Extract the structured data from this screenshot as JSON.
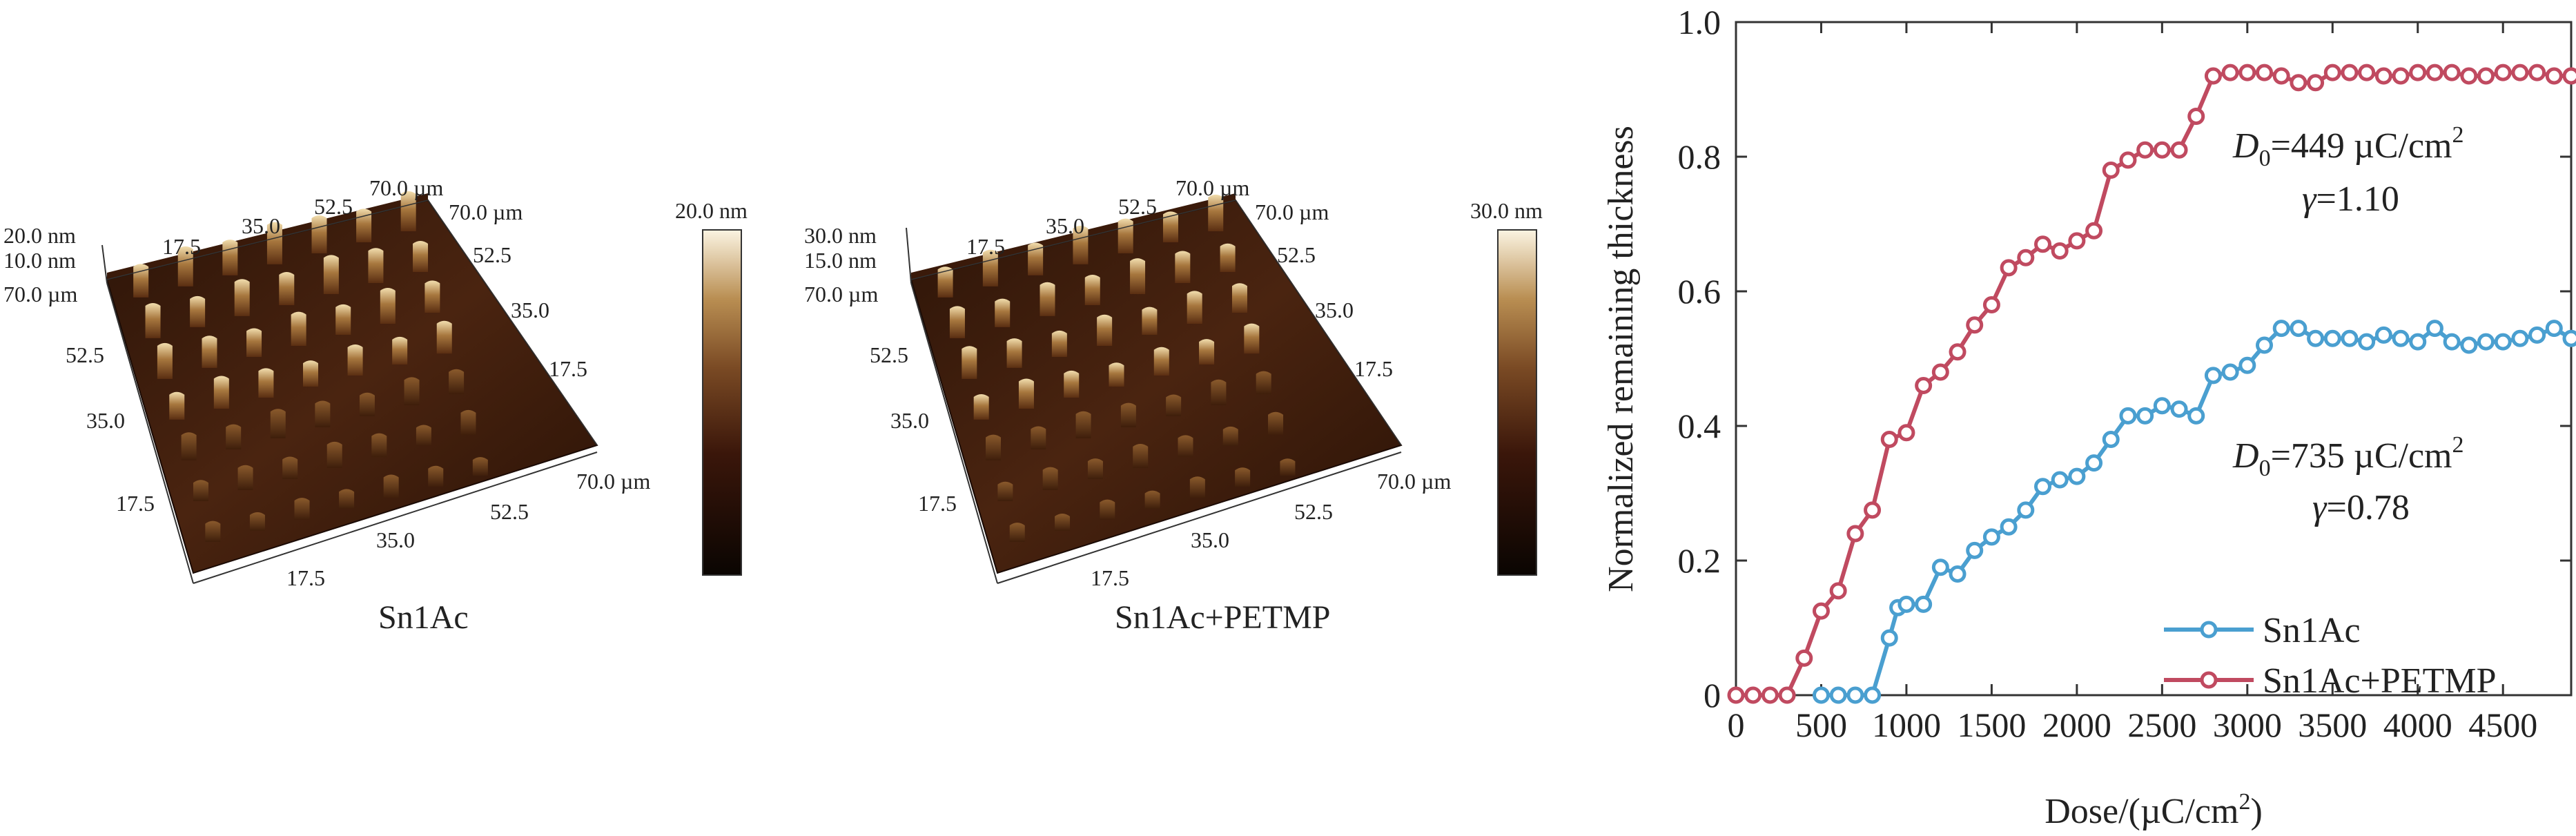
{
  "afm_panels": [
    {
      "caption": "Sn1Ac",
      "z_top_label": "20.0 nm",
      "z_mid_label": "10.0 nm",
      "y_top_label": "70.0 µm",
      "y_ticks": [
        "52.5",
        "35.0",
        "17.5"
      ],
      "x_ticks": [
        "17.5",
        "35.0",
        "52.5"
      ],
      "x_end_label": "70.0 µm",
      "top_ticks": [
        "17.5",
        "35.0",
        "52.5"
      ],
      "top_end_label": "70.0 µm",
      "right_top_label": "70.0 µm",
      "right_ticks": [
        "52.5",
        "35.0",
        "17.5"
      ],
      "colorbar_max": "20.0 nm"
    },
    {
      "caption": "Sn1Ac+PETMP",
      "z_top_label": "30.0 nm",
      "z_mid_label": "15.0 nm",
      "y_top_label": "70.0 µm",
      "y_ticks": [
        "52.5",
        "35.0",
        "17.5"
      ],
      "x_ticks": [
        "17.5",
        "35.0",
        "52.5"
      ],
      "x_end_label": "70.0 µm",
      "top_ticks": [
        "17.5",
        "35.0",
        "52.5"
      ],
      "top_end_label": "70.0 µm",
      "right_top_label": "70.0 µm",
      "right_ticks": [
        "52.5",
        "35.0",
        "17.5"
      ],
      "colorbar_max": "30.0 nm"
    }
  ],
  "colors": {
    "sn1ac": "#4a9fd0",
    "sn1ac_petmp": "#c04a60",
    "afm_dark": "#1a0b05",
    "afm_mid": "#6b3a1c",
    "afm_high": "#e6c98a"
  },
  "chart_data": {
    "type": "line",
    "xlabel_main": "Dose/(µC/cm",
    "xlabel_sup": "2",
    "xlabel_end": ")",
    "ylabel": "Normalized remaining thickness",
    "xlim": [
      0,
      4900
    ],
    "ylim": [
      0,
      1.0
    ],
    "x_ticks": [
      0,
      500,
      1000,
      1500,
      2000,
      2500,
      3000,
      3500,
      4000,
      4500
    ],
    "y_ticks": [
      0,
      0.2,
      0.4,
      0.6,
      0.8,
      1.0
    ],
    "y_tick_labels": [
      "0",
      "0.2",
      "0.4",
      "0.6",
      "0.8",
      "1.0"
    ],
    "grid": false,
    "legend_position": "bottom-right",
    "series": [
      {
        "name": "Sn1Ac",
        "x": [
          500,
          600,
          700,
          800,
          900,
          950,
          1000,
          1100,
          1200,
          1300,
          1400,
          1500,
          1600,
          1700,
          1800,
          1900,
          2000,
          2100,
          2200,
          2300,
          2400,
          2500,
          2600,
          2700,
          2800,
          2900,
          3000,
          3100,
          3200,
          3300,
          3400,
          3500,
          3600,
          3700,
          3800,
          3900,
          4000,
          4100,
          4200,
          4300,
          4400,
          4500,
          4600,
          4700,
          4800,
          4900
        ],
        "y": [
          0,
          0,
          0,
          0,
          0.085,
          0.13,
          0.135,
          0.135,
          0.19,
          0.18,
          0.215,
          0.235,
          0.25,
          0.275,
          0.31,
          0.32,
          0.325,
          0.345,
          0.38,
          0.415,
          0.415,
          0.43,
          0.425,
          0.415,
          0.475,
          0.48,
          0.49,
          0.52,
          0.545,
          0.545,
          0.53,
          0.53,
          0.53,
          0.525,
          0.535,
          0.53,
          0.525,
          0.545,
          0.525,
          0.52,
          0.525,
          0.525,
          0.53,
          0.535,
          0.545,
          0.53
        ]
      },
      {
        "name": "Sn1Ac+PETMP",
        "x": [
          0,
          100,
          200,
          300,
          400,
          500,
          600,
          700,
          800,
          900,
          1000,
          1100,
          1200,
          1300,
          1400,
          1500,
          1600,
          1700,
          1800,
          1900,
          2000,
          2100,
          2200,
          2300,
          2400,
          2500,
          2600,
          2700,
          2800,
          2900,
          3000,
          3100,
          3200,
          3300,
          3400,
          3500,
          3600,
          3700,
          3800,
          3900,
          4000,
          4100,
          4200,
          4300,
          4400,
          4500,
          4600,
          4700,
          4800,
          4900
        ],
        "y": [
          0,
          0,
          0,
          0,
          0.055,
          0.125,
          0.155,
          0.24,
          0.275,
          0.38,
          0.39,
          0.46,
          0.48,
          0.51,
          0.55,
          0.58,
          0.635,
          0.65,
          0.67,
          0.66,
          0.675,
          0.69,
          0.78,
          0.795,
          0.81,
          0.81,
          0.81,
          0.86,
          0.92,
          0.925,
          0.925,
          0.925,
          0.92,
          0.91,
          0.91,
          0.925,
          0.925,
          0.925,
          0.92,
          0.92,
          0.925,
          0.925,
          0.925,
          0.92,
          0.92,
          0.925,
          0.925,
          0.925,
          0.92,
          0.92
        ]
      }
    ],
    "annotations": [
      {
        "series": "Sn1Ac+PETMP",
        "d0_base": "D",
        "d0_sub": "0",
        "d0_value": "=449 µC/cm",
        "d0_sup": "2",
        "gamma_sym": "γ",
        "gamma_value": "=1.10"
      },
      {
        "series": "Sn1Ac",
        "d0_base": "D",
        "d0_sub": "0",
        "d0_value": "=735 µC/cm",
        "d0_sup": "2",
        "gamma_sym": "γ",
        "gamma_value": "=0.78"
      }
    ]
  }
}
